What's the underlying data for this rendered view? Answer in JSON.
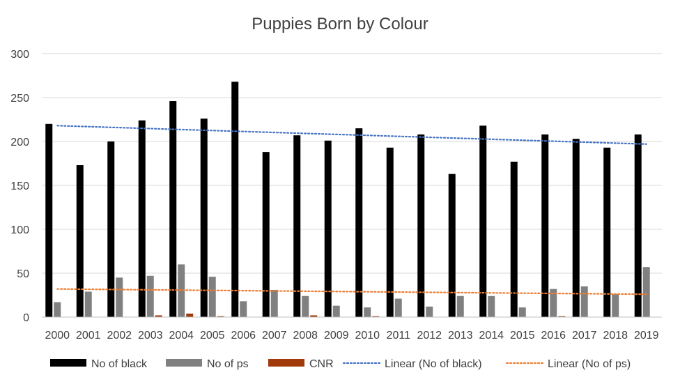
{
  "chart_data": {
    "type": "bar",
    "title": "Puppies Born by Colour",
    "xlabel": "",
    "ylabel": "",
    "ylim": [
      0,
      300
    ],
    "yticks": [
      0,
      50,
      100,
      150,
      200,
      250,
      300
    ],
    "grid": true,
    "legend_position": "bottom",
    "categories": [
      "2000",
      "2001",
      "2002",
      "2003",
      "2004",
      "2005",
      "2006",
      "2007",
      "2008",
      "2009",
      "2010",
      "2011",
      "2012",
      "2013",
      "2014",
      "2015",
      "2016",
      "2017",
      "2018",
      "2019"
    ],
    "series": [
      {
        "name": "No of black",
        "color": "#000000",
        "values": [
          220,
          173,
          200,
          224,
          246,
          226,
          268,
          188,
          207,
          201,
          215,
          193,
          208,
          163,
          218,
          177,
          208,
          203,
          193,
          208
        ]
      },
      {
        "name": "No of ps",
        "color": "#808080",
        "values": [
          17,
          29,
          45,
          47,
          60,
          46,
          18,
          31,
          24,
          13,
          11,
          21,
          12,
          24,
          24,
          11,
          32,
          35,
          26,
          57
        ]
      },
      {
        "name": "CNR",
        "color": "#A13A0B",
        "values": [
          0,
          0,
          0,
          2,
          4,
          1,
          0,
          0,
          2,
          0,
          1,
          0,
          0,
          0,
          0,
          0,
          1,
          0,
          0,
          0
        ]
      }
    ],
    "trendlines": [
      {
        "name": "Linear (No of black)",
        "color": "#4472C4",
        "type": "linear",
        "start": 218,
        "end": 197
      },
      {
        "name": "Linear (No of ps)",
        "color": "#ED7D31",
        "type": "linear",
        "start": 32,
        "end": 26
      }
    ]
  }
}
